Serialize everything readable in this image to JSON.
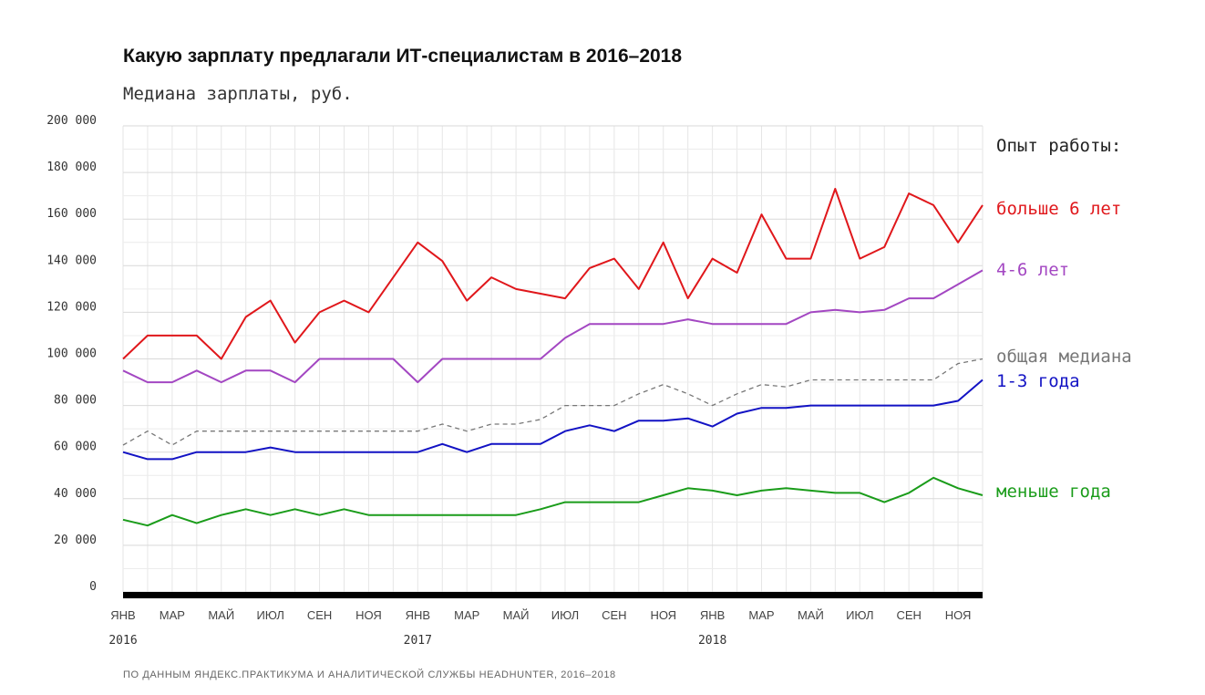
{
  "chart_data": {
    "type": "line",
    "title": "Какую зарплату предлагали ИТ-специалистам в 2016–2018",
    "subtitle": "Медиана зарплаты, руб.",
    "ylabel": "Медиана зарплаты, руб.",
    "ylim": [
      0,
      200000
    ],
    "yticks": [
      {
        "value": 0,
        "label": "0"
      },
      {
        "value": 20000,
        "label": "20 000"
      },
      {
        "value": 40000,
        "label": "40 000"
      },
      {
        "value": 60000,
        "label": "60 000"
      },
      {
        "value": 80000,
        "label": "80 000"
      },
      {
        "value": 100000,
        "label": "100 000"
      },
      {
        "value": 120000,
        "label": "120 000"
      },
      {
        "value": 140000,
        "label": "140 000"
      },
      {
        "value": 160000,
        "label": "160 000"
      },
      {
        "value": 180000,
        "label": "180 000"
      },
      {
        "value": 200000,
        "label": "200 000"
      }
    ],
    "xticks": [
      {
        "index": 0,
        "label": "ЯНВ"
      },
      {
        "index": 2,
        "label": "МАР"
      },
      {
        "index": 4,
        "label": "МАЙ"
      },
      {
        "index": 6,
        "label": "ИЮЛ"
      },
      {
        "index": 8,
        "label": "СЕН"
      },
      {
        "index": 10,
        "label": "НОЯ"
      },
      {
        "index": 12,
        "label": "ЯНВ"
      },
      {
        "index": 14,
        "label": "МАР"
      },
      {
        "index": 16,
        "label": "МАЙ"
      },
      {
        "index": 18,
        "label": "ИЮЛ"
      },
      {
        "index": 20,
        "label": "СЕН"
      },
      {
        "index": 22,
        "label": "НОЯ"
      },
      {
        "index": 24,
        "label": "ЯНВ"
      },
      {
        "index": 26,
        "label": "МАР"
      },
      {
        "index": 28,
        "label": "МАЙ"
      },
      {
        "index": 30,
        "label": "ИЮЛ"
      },
      {
        "index": 32,
        "label": "СЕН"
      },
      {
        "index": 34,
        "label": "НОЯ"
      }
    ],
    "years": [
      {
        "index": 0,
        "label": "2016"
      },
      {
        "index": 12,
        "label": "2017"
      },
      {
        "index": 24,
        "label": "2018"
      }
    ],
    "legend_title": "Опыт работы:",
    "series": [
      {
        "name": "больше 6 лет",
        "color": "#e0171b",
        "dashed": false,
        "values": [
          100000,
          110000,
          110000,
          110000,
          100000,
          118000,
          125000,
          107000,
          120000,
          125000,
          120000,
          135000,
          150000,
          142000,
          125000,
          135000,
          130000,
          128000,
          126000,
          139000,
          143000,
          130000,
          150000,
          126000,
          143000,
          137000,
          162000,
          143000,
          143000,
          173000,
          143000,
          148000,
          171000,
          166000,
          150000,
          166000
        ]
      },
      {
        "name": "4-6 лет",
        "color": "#a347c2",
        "dashed": false,
        "values": [
          95000,
          90000,
          90000,
          95000,
          90000,
          95000,
          95000,
          90000,
          100000,
          100000,
          100000,
          100000,
          90000,
          100000,
          100000,
          100000,
          100000,
          100000,
          109000,
          115000,
          115000,
          115000,
          115000,
          117000,
          115000,
          115000,
          115000,
          115000,
          120000,
          121000,
          120000,
          121000,
          126000,
          126000,
          132000,
          138000
        ]
      },
      {
        "name": "общая медиана",
        "color": "#777777",
        "dashed": true,
        "values": [
          63000,
          69000,
          63000,
          69000,
          69000,
          69000,
          69000,
          69000,
          69000,
          69000,
          69000,
          69000,
          69000,
          72000,
          69000,
          72000,
          72000,
          74000,
          80000,
          80000,
          80000,
          85000,
          89000,
          85000,
          80000,
          85000,
          89000,
          88000,
          91000,
          91000,
          91000,
          91000,
          91000,
          91000,
          98000,
          100000
        ]
      },
      {
        "name": "1-3 года",
        "color": "#1212c4",
        "dashed": false,
        "values": [
          60000,
          57000,
          57000,
          60000,
          60000,
          60000,
          62000,
          60000,
          60000,
          60000,
          60000,
          60000,
          60000,
          63500,
          60000,
          63500,
          63500,
          63500,
          69000,
          71500,
          69000,
          73500,
          73500,
          74500,
          71000,
          76500,
          79000,
          79000,
          80000,
          80000,
          80000,
          80000,
          80000,
          80000,
          82000,
          91000
        ]
      },
      {
        "name": "меньше года",
        "color": "#1a9c1a",
        "dashed": false,
        "values": [
          31000,
          28500,
          33000,
          29500,
          33000,
          35500,
          33000,
          35500,
          33000,
          35500,
          33000,
          33000,
          33000,
          33000,
          33000,
          33000,
          33000,
          35500,
          38500,
          38500,
          38500,
          38500,
          41500,
          44500,
          43500,
          41500,
          43500,
          44500,
          43500,
          42500,
          42500,
          38500,
          42500,
          49000,
          44500,
          41500
        ]
      }
    ]
  },
  "source": "ПО ДАННЫМ ЯНДЕКС.ПРАКТИКУМА И АНАЛИТИЧЕСКОЙ СЛУЖБЫ HEADHUNTER, 2016–2018"
}
